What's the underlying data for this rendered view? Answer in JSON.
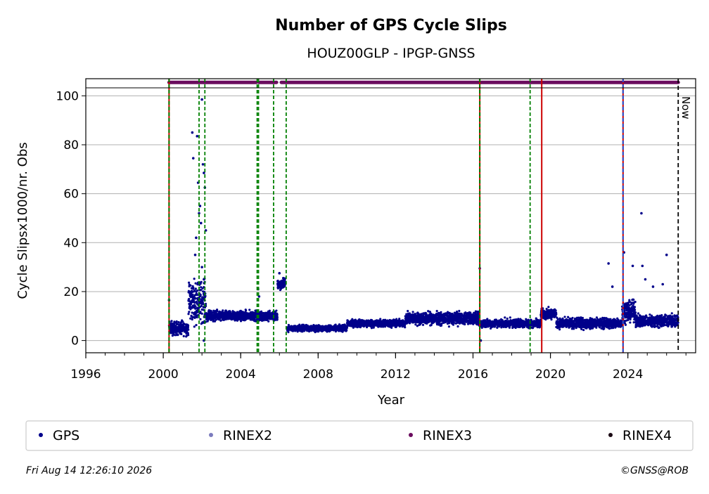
{
  "chart_data": {
    "type": "scatter",
    "title": "Number of GPS Cycle Slips",
    "subtitle": "HOUZ00GLP - IPGP-GNSS",
    "xlabel": "Year",
    "ylabel": "Cycle Slipsx1000/nr. Obs",
    "xlim": [
      1996,
      2027.5
    ],
    "ylim": [
      -5,
      107
    ],
    "x_ticks": [
      "1996",
      "2000",
      "2004",
      "2008",
      "2012",
      "2016",
      "2020",
      "2024"
    ],
    "y_ticks": [
      "0",
      "20",
      "40",
      "60",
      "80",
      "100"
    ],
    "grid": "horizontal",
    "now_label": "Now",
    "now_x": 2026.6,
    "rinex3_band": {
      "y": 105.5,
      "segments": [
        [
          2000.3,
          2004.8
        ],
        [
          2004.95,
          2005.85
        ],
        [
          2006.1,
          2026.6
        ]
      ]
    },
    "event_lines": [
      {
        "x": 2000.3,
        "type": "red-green"
      },
      {
        "x": 2001.85,
        "type": "green"
      },
      {
        "x": 2002.15,
        "type": "green"
      },
      {
        "x": 2004.85,
        "type": "green"
      },
      {
        "x": 2004.92,
        "type": "green"
      },
      {
        "x": 2005.7,
        "type": "green"
      },
      {
        "x": 2006.35,
        "type": "green"
      },
      {
        "x": 2016.35,
        "type": "red-green"
      },
      {
        "x": 2018.95,
        "type": "green"
      },
      {
        "x": 2019.55,
        "type": "red"
      },
      {
        "x": 2023.75,
        "type": "red-blue"
      }
    ],
    "gps_segments": [
      {
        "x0": 2000.3,
        "x1": 2001.3,
        "base": 5,
        "spread": 4
      },
      {
        "x0": 2001.3,
        "x1": 2002.2,
        "base": 16,
        "spread": 12
      },
      {
        "x0": 2002.2,
        "x1": 2004.8,
        "base": 10,
        "spread": 3
      },
      {
        "x0": 2004.8,
        "x1": 2005.9,
        "base": 10,
        "spread": 3
      },
      {
        "x0": 2005.9,
        "x1": 2006.3,
        "base": 23,
        "spread": 3
      },
      {
        "x0": 2006.4,
        "x1": 2009.5,
        "base": 5,
        "spread": 1.8
      },
      {
        "x0": 2009.5,
        "x1": 2012.5,
        "base": 7,
        "spread": 2.2
      },
      {
        "x0": 2012.5,
        "x1": 2016.3,
        "base": 9,
        "spread": 3.5
      },
      {
        "x0": 2016.3,
        "x1": 2019.5,
        "base": 7,
        "spread": 2.5
      },
      {
        "x0": 2019.5,
        "x1": 2020.3,
        "base": 11,
        "spread": 3
      },
      {
        "x0": 2020.3,
        "x1": 2023.7,
        "base": 7,
        "spread": 3
      },
      {
        "x0": 2023.7,
        "x1": 2024.4,
        "base": 12,
        "spread": 6
      },
      {
        "x0": 2024.4,
        "x1": 2026.6,
        "base": 8,
        "spread": 3.5
      }
    ],
    "gps_outliers": [
      [
        2000.3,
        16.5
      ],
      [
        2001.5,
        85
      ],
      [
        2001.55,
        74.5
      ],
      [
        2001.75,
        83.5
      ],
      [
        2001.8,
        64.5
      ],
      [
        2001.85,
        52
      ],
      [
        2001.9,
        55
      ],
      [
        2001.95,
        48
      ],
      [
        2002.0,
        98.5
      ],
      [
        2002.05,
        72
      ],
      [
        2002.1,
        68.5
      ],
      [
        2002.15,
        62.5
      ],
      [
        2002.2,
        45
      ],
      [
        2001.7,
        42
      ],
      [
        2001.65,
        35
      ],
      [
        2002.0,
        30
      ],
      [
        2002.1,
        25
      ],
      [
        2002.1,
        0
      ],
      [
        2004.9,
        21
      ],
      [
        2004.95,
        18
      ],
      [
        2006.0,
        27.5
      ],
      [
        2006.2,
        25.5
      ],
      [
        2016.35,
        29.5
      ],
      [
        2016.4,
        0
      ],
      [
        2023.0,
        31.5
      ],
      [
        2023.2,
        22
      ],
      [
        2023.8,
        36
      ],
      [
        2024.25,
        30.5
      ],
      [
        2024.7,
        52
      ],
      [
        2024.75,
        30.5
      ],
      [
        2024.9,
        25
      ],
      [
        2025.3,
        22
      ],
      [
        2026.0,
        35
      ],
      [
        2025.8,
        23
      ]
    ],
    "legend": {
      "placement": "bottom",
      "entries": [
        {
          "label": "GPS",
          "color": "#00008b"
        },
        {
          "label": "RINEX2",
          "color": "#7b7bbd"
        },
        {
          "label": "RINEX3",
          "color": "#6a0c5e"
        },
        {
          "label": "RINEX4",
          "color": "#1a0a14"
        }
      ]
    },
    "colors": {
      "gps": "#00008b",
      "rinex3": "#6a0c5e",
      "green_line": "#008000",
      "red_line": "#cc0000",
      "blue_line": "#1f4fd1",
      "grid": "#b0b0b0"
    }
  },
  "footer": {
    "timestamp": "Fri Aug 14 12:26:10 2026",
    "copyright": "©GNSS@ROB"
  }
}
